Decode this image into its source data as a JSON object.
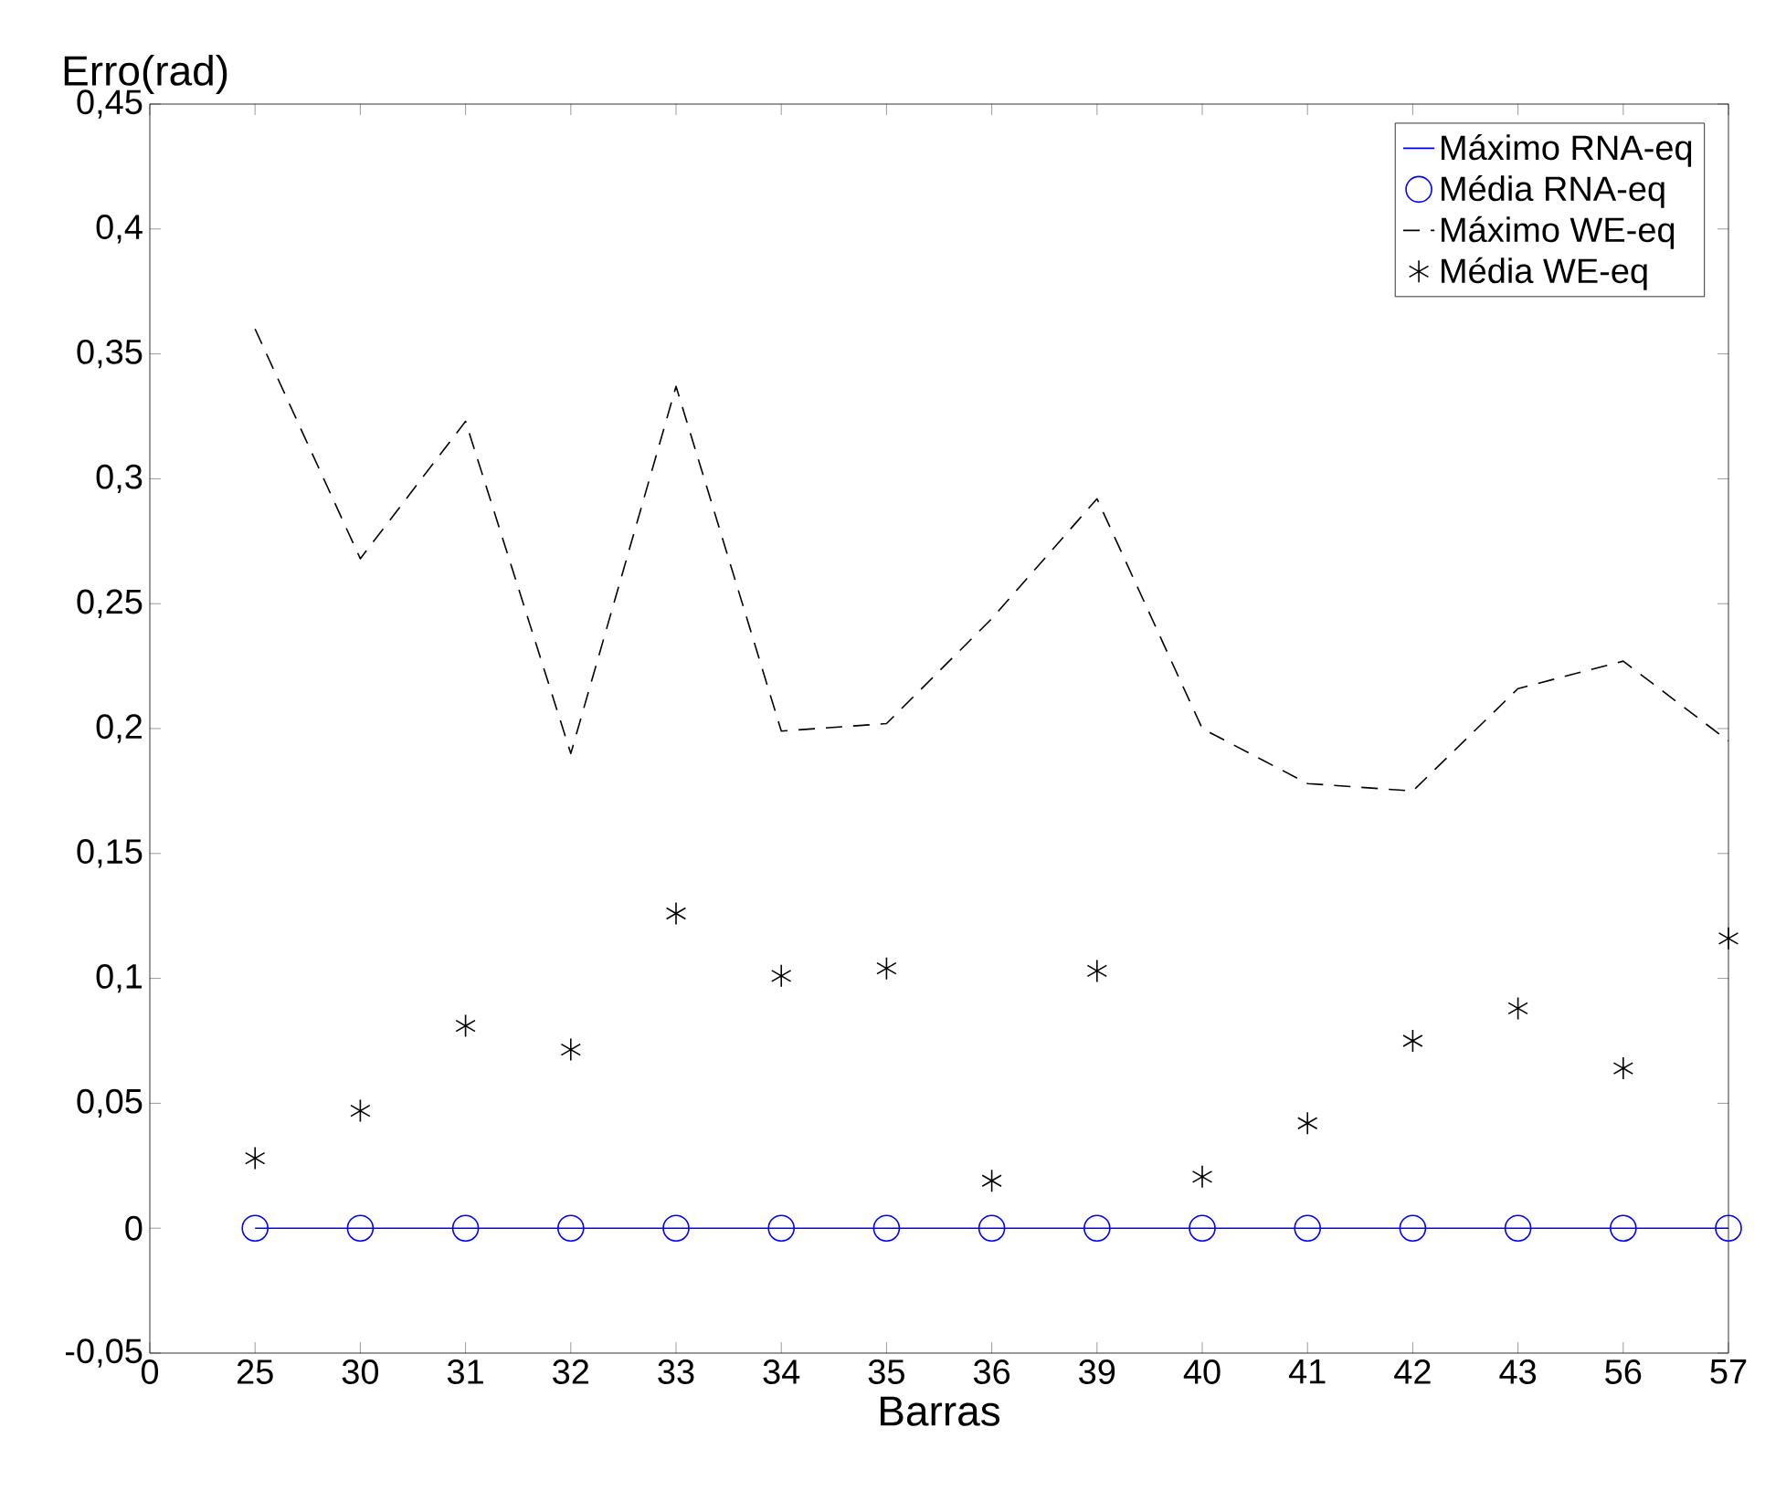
{
  "chart_data": {
    "type": "line",
    "xlabel": "Barras",
    "ylabel": "Erro(rad)",
    "categories": [
      "0",
      "25",
      "30",
      "31",
      "32",
      "33",
      "34",
      "35",
      "36",
      "39",
      "40",
      "41",
      "42",
      "43",
      "56",
      "57"
    ],
    "ylim": [
      -0.05,
      0.45
    ],
    "yticks": [
      {
        "value": -0.05,
        "label": "-0,05"
      },
      0,
      {
        "value": 0.05,
        "label": "0,05"
      },
      {
        "value": 0.1,
        "label": "0,1"
      },
      {
        "value": 0.15,
        "label": "0,15"
      },
      {
        "value": 0.2,
        "label": "0,2"
      },
      {
        "value": 0.25,
        "label": "0,25"
      },
      {
        "value": 0.3,
        "label": "0,3"
      },
      {
        "value": 0.35,
        "label": "0,35"
      },
      {
        "value": 0.4,
        "label": "0,4"
      },
      {
        "value": 0.45,
        "label": "0,45"
      }
    ],
    "legend": "top right",
    "series": [
      {
        "name": "Máximo RNA-eq",
        "type": "line",
        "color": "#0000ff",
        "line_style": "solid",
        "marker": "none",
        "values": [
          null,
          0,
          0,
          0,
          0,
          0,
          0,
          0,
          0,
          0,
          0,
          0,
          0,
          0,
          0,
          0
        ]
      },
      {
        "name": "Média    RNA-eq",
        "type": "scatter",
        "color": "#0000ff",
        "marker": "circle",
        "values": [
          null,
          0,
          0,
          0,
          0,
          0,
          0,
          0,
          0,
          0,
          0,
          0,
          0,
          0,
          0,
          0
        ]
      },
      {
        "name": "Máximo WE-eq",
        "type": "line",
        "color": "#000000",
        "line_style": "dashed",
        "marker": "none",
        "values": [
          null,
          0.36,
          0.268,
          0.323,
          0.19,
          0.337,
          0.199,
          0.202,
          0.244,
          0.292,
          0.2,
          0.178,
          0.175,
          0.216,
          0.227,
          0.195
        ]
      },
      {
        "name": "Média    WE-eq",
        "type": "scatter",
        "color": "#000000",
        "marker": "cross",
        "values": [
          null,
          0.028,
          0.047,
          0.081,
          0.0715,
          0.126,
          0.101,
          0.104,
          0.019,
          0.103,
          0.0206,
          0.042,
          0.075,
          0.088,
          0.064,
          0.116
        ]
      }
    ]
  }
}
